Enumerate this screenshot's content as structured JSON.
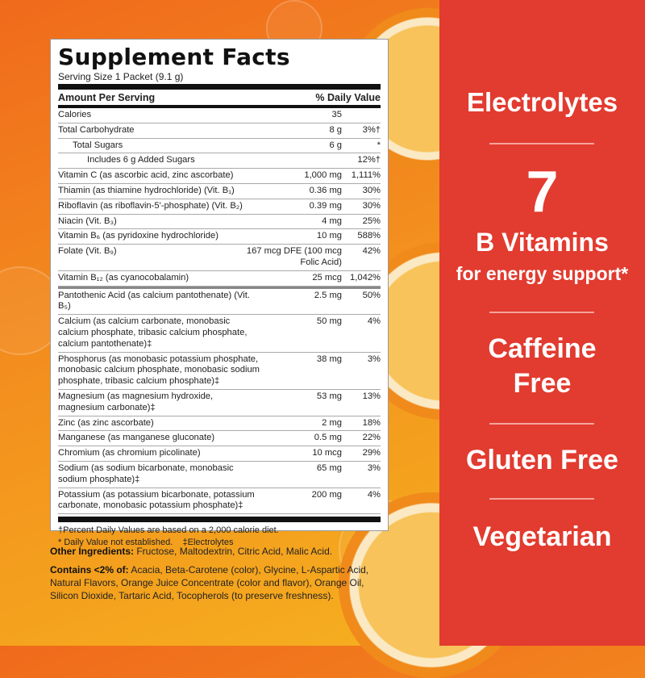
{
  "facts": {
    "title": "Supplement Facts",
    "serving": "Serving Size 1 Packet (9.1 g)",
    "header_amount": "Amount Per Serving",
    "header_dv": "% Daily Value",
    "rows_top": [
      {
        "name": "Calories",
        "amount": "35",
        "dv": ""
      },
      {
        "name": "Total Carbohydrate",
        "amount": "8 g",
        "dv": "3%†",
        "indent": 0
      },
      {
        "name": "Total Sugars",
        "amount": "6 g",
        "dv": "*",
        "indent": 1
      },
      {
        "name": "Includes 6 g Added Sugars",
        "amount": "",
        "dv": "12%†",
        "indent": 2
      },
      {
        "name": "Vitamin C (as ascorbic acid, zinc ascorbate)",
        "amount": "1,000 mg",
        "dv": "1,111%"
      },
      {
        "name": "Thiamin (as thiamine hydrochloride) (Vit. B₁)",
        "amount": "0.36 mg",
        "dv": "30%"
      },
      {
        "name": "Riboflavin (as riboflavin-5'-phosphate) (Vit. B₂)",
        "amount": "0.39 mg",
        "dv": "30%"
      },
      {
        "name": "Niacin (Vit. B₃)",
        "amount": "4 mg",
        "dv": "25%"
      },
      {
        "name": "Vitamin B₆ (as pyridoxine hydrochloride)",
        "amount": "10 mg",
        "dv": "588%"
      },
      {
        "name": "Folate (Vit. B₉)",
        "amount": "167 mcg DFE (100 mcg Folic Acid)",
        "dv": "42%"
      },
      {
        "name": "Vitamin B₁₂ (as cyanocobalamin)",
        "amount": "25 mcg",
        "dv": "1,042%"
      }
    ],
    "rows_bottom": [
      {
        "name": "Pantothenic Acid (as calcium pantothenate) (Vit. B₅)",
        "amount": "2.5 mg",
        "dv": "50%"
      },
      {
        "name": "Calcium (as calcium carbonate, monobasic calcium phosphate, tribasic calcium phosphate, calcium pantothenate)‡",
        "amount": "50 mg",
        "dv": "4%"
      },
      {
        "name": "Phosphorus (as monobasic potassium phosphate, monobasic calcium phosphate, monobasic sodium phosphate, tribasic calcium phosphate)‡",
        "amount": "38 mg",
        "dv": "3%"
      },
      {
        "name": "Magnesium (as magnesium hydroxide, magnesium carbonate)‡",
        "amount": "53 mg",
        "dv": "13%"
      },
      {
        "name": "Zinc (as zinc ascorbate)",
        "amount": "2 mg",
        "dv": "18%"
      },
      {
        "name": "Manganese (as manganese gluconate)",
        "amount": "0.5 mg",
        "dv": "22%"
      },
      {
        "name": "Chromium (as chromium picolinate)",
        "amount": "10 mcg",
        "dv": "29%"
      },
      {
        "name": "Sodium (as sodium bicarbonate, monobasic sodium phosphate)‡",
        "amount": "65 mg",
        "dv": "3%"
      },
      {
        "name": "Potassium (as potassium bicarbonate, potassium carbonate, monobasic potassium phosphate)‡",
        "amount": "200 mg",
        "dv": "4%"
      }
    ],
    "footnote1": "†Percent Daily Values are based on a 2,000 calorie diet.",
    "footnote2": "* Daily Value not established.    ‡Electrolytes"
  },
  "ingredients": {
    "other_label": "Other Ingredients:",
    "other_text": " Fructose, Maltodextrin, Citric Acid, Malic Acid.",
    "contains_label": "Contains <2% of:",
    "contains_text": " Acacia, Beta-Carotene (color), Glycine, L-Aspartic Acid, Natural Flavors, Orange Juice Concentrate (color and flavor), Orange Oil, Silicon Dioxide, Tartaric Acid, Tocopherols (to preserve freshness)."
  },
  "claims": {
    "electrolytes": "Electrolytes",
    "seven": "7",
    "b_vitamins": "B Vitamins",
    "energy": "for energy support*",
    "caffeine": "Caffeine",
    "free": "Free",
    "gluten": "Gluten Free",
    "vegetarian": "Vegetarian"
  },
  "colors": {
    "red_panel": "#e23b2f",
    "orange_bg": "#f3901e"
  }
}
